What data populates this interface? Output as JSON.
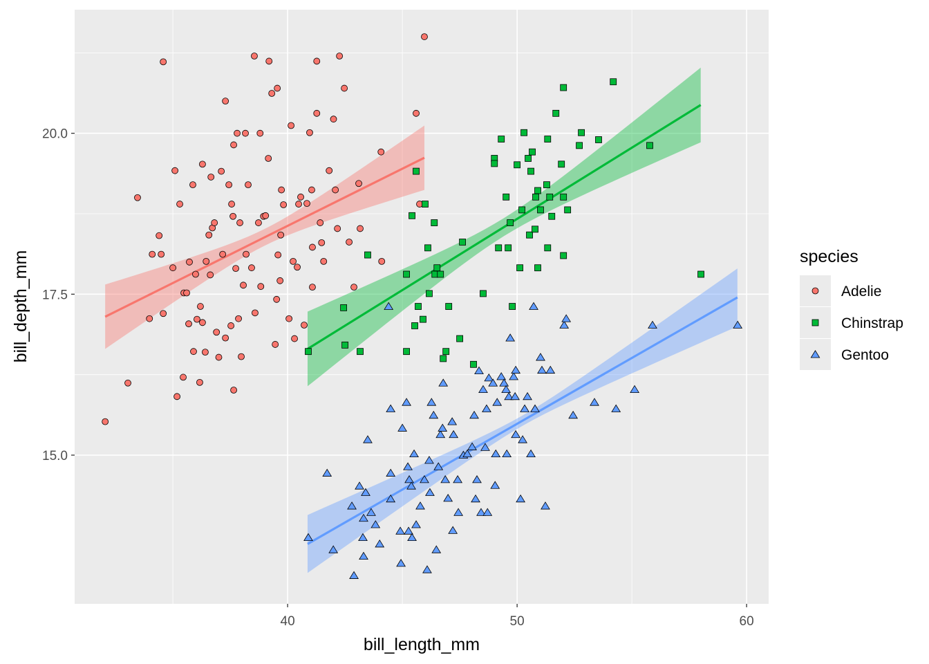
{
  "chart_data": {
    "type": "scatter",
    "title": "",
    "xlabel": "bill_length_mm",
    "ylabel": "bill_depth_mm",
    "xlim": [
      30.72,
      60.96
    ],
    "ylim": [
      12.69,
      21.92
    ],
    "x_ticks": [
      {
        "value": 40,
        "label": "40"
      },
      {
        "value": 50,
        "label": "50"
      },
      {
        "value": 60,
        "label": "60"
      }
    ],
    "y_ticks": [
      {
        "value": 15.0,
        "label": "15.0"
      },
      {
        "value": 17.5,
        "label": "17.5"
      },
      {
        "value": 20.0,
        "label": "20.0"
      }
    ],
    "x_minor": [
      35,
      45,
      55
    ],
    "y_minor": [
      16.25,
      18.75,
      21.25
    ],
    "grid": true,
    "legend": {
      "title": "species",
      "placement": "right"
    },
    "series": [
      {
        "name": "Adelie",
        "color": "#F8766D",
        "shape": "circle",
        "fit": {
          "x": [
            32.05,
            45.96
          ],
          "y": [
            17.15,
            19.62
          ],
          "ci_halfwidth": {
            "ends": 0.5,
            "center": 0.13
          }
        },
        "points": [
          [
            32.05,
            15.52
          ],
          [
            33.04,
            16.12
          ],
          [
            33.46,
            19.0
          ],
          [
            33.98,
            17.12
          ],
          [
            34.1,
            18.12
          ],
          [
            34.4,
            18.41
          ],
          [
            34.49,
            18.12
          ],
          [
            34.58,
            17.2
          ],
          [
            34.58,
            21.11
          ],
          [
            35.0,
            17.91
          ],
          [
            35.09,
            19.42
          ],
          [
            35.18,
            15.91
          ],
          [
            35.3,
            18.9
          ],
          [
            35.45,
            16.21
          ],
          [
            35.48,
            17.52
          ],
          [
            35.6,
            17.52
          ],
          [
            35.69,
            17.04
          ],
          [
            35.72,
            18.0
          ],
          [
            35.87,
            19.2
          ],
          [
            35.9,
            16.61
          ],
          [
            35.99,
            17.81
          ],
          [
            36.05,
            17.11
          ],
          [
            36.17,
            16.13
          ],
          [
            36.2,
            17.31
          ],
          [
            36.29,
            19.52
          ],
          [
            36.29,
            17.06
          ],
          [
            36.41,
            16.6
          ],
          [
            36.45,
            18.01
          ],
          [
            36.57,
            18.42
          ],
          [
            36.63,
            17.8
          ],
          [
            36.66,
            19.32
          ],
          [
            36.72,
            18.53
          ],
          [
            36.81,
            18.61
          ],
          [
            36.9,
            16.91
          ],
          [
            37.0,
            16.52
          ],
          [
            37.11,
            19.41
          ],
          [
            37.17,
            18.12
          ],
          [
            37.29,
            16.82
          ],
          [
            37.29,
            20.5
          ],
          [
            37.44,
            19.2
          ],
          [
            37.53,
            17.01
          ],
          [
            37.56,
            18.9
          ],
          [
            37.62,
            18.71
          ],
          [
            37.65,
            19.82
          ],
          [
            37.65,
            16.01
          ],
          [
            37.74,
            17.9
          ],
          [
            37.8,
            20.0
          ],
          [
            37.86,
            17.12
          ],
          [
            37.92,
            18.61
          ],
          [
            37.98,
            16.53
          ],
          [
            38.07,
            17.64
          ],
          [
            38.16,
            20.0
          ],
          [
            38.19,
            18.12
          ],
          [
            38.28,
            19.2
          ],
          [
            38.43,
            17.91
          ],
          [
            38.55,
            21.2
          ],
          [
            38.58,
            17.21
          ],
          [
            38.73,
            18.61
          ],
          [
            38.8,
            20.0
          ],
          [
            38.83,
            17.62
          ],
          [
            38.95,
            18.71
          ],
          [
            39.04,
            18.72
          ],
          [
            39.16,
            19.61
          ],
          [
            39.19,
            21.12
          ],
          [
            39.31,
            20.62
          ],
          [
            39.46,
            16.72
          ],
          [
            39.52,
            17.42
          ],
          [
            39.55,
            20.7
          ],
          [
            39.58,
            18.11
          ],
          [
            39.67,
            17.71
          ],
          [
            39.7,
            18.42
          ],
          [
            39.73,
            19.12
          ],
          [
            39.82,
            18.89
          ],
          [
            40.06,
            17.12
          ],
          [
            40.15,
            20.12
          ],
          [
            40.24,
            18.01
          ],
          [
            40.3,
            16.81
          ],
          [
            40.42,
            17.92
          ],
          [
            40.48,
            18.9
          ],
          [
            40.57,
            19.01
          ],
          [
            40.72,
            17.02
          ],
          [
            40.84,
            18.91
          ],
          [
            40.96,
            20.01
          ],
          [
            41.05,
            19.12
          ],
          [
            41.08,
            17.61
          ],
          [
            41.08,
            18.23
          ],
          [
            41.27,
            21.12
          ],
          [
            41.27,
            20.31
          ],
          [
            41.42,
            18.61
          ],
          [
            41.48,
            18.3
          ],
          [
            41.57,
            18.01
          ],
          [
            41.81,
            19.42
          ],
          [
            42.0,
            20.22
          ],
          [
            42.08,
            19.12
          ],
          [
            42.17,
            18.52
          ],
          [
            42.26,
            21.2
          ],
          [
            42.47,
            20.7
          ],
          [
            42.68,
            18.31
          ],
          [
            42.89,
            17.61
          ],
          [
            43.1,
            19.22
          ],
          [
            43.16,
            18.52
          ],
          [
            44.07,
            19.71
          ],
          [
            44.1,
            18.01
          ],
          [
            45.6,
            20.31
          ],
          [
            45.75,
            18.9
          ],
          [
            45.96,
            21.5
          ]
        ]
      },
      {
        "name": "Chinstrap",
        "color": "#00BA38",
        "shape": "square",
        "fit": {
          "x": [
            40.87,
            58.0
          ],
          "y": [
            16.65,
            20.44
          ],
          "ci_halfwidth": {
            "ends": 0.58,
            "center": 0.14
          }
        },
        "points": [
          [
            40.9,
            16.61
          ],
          [
            42.44,
            17.29
          ],
          [
            42.5,
            16.71
          ],
          [
            43.16,
            16.61
          ],
          [
            43.49,
            18.11
          ],
          [
            45.18,
            17.81
          ],
          [
            45.18,
            16.61
          ],
          [
            45.42,
            18.72
          ],
          [
            45.54,
            17.01
          ],
          [
            45.6,
            19.41
          ],
          [
            45.69,
            17.31
          ],
          [
            45.9,
            17.11
          ],
          [
            45.99,
            18.9
          ],
          [
            46.11,
            18.22
          ],
          [
            46.17,
            17.51
          ],
          [
            46.39,
            18.61
          ],
          [
            46.42,
            17.81
          ],
          [
            46.51,
            17.91
          ],
          [
            46.66,
            17.81
          ],
          [
            46.78,
            16.5
          ],
          [
            46.9,
            16.61
          ],
          [
            47.02,
            17.31
          ],
          [
            47.5,
            16.81
          ],
          [
            47.62,
            18.31
          ],
          [
            48.1,
            16.41
          ],
          [
            48.52,
            17.51
          ],
          [
            49.01,
            19.61
          ],
          [
            49.01,
            19.53
          ],
          [
            49.19,
            18.22
          ],
          [
            49.31,
            19.91
          ],
          [
            49.52,
            19.01
          ],
          [
            49.61,
            18.22
          ],
          [
            49.7,
            18.61
          ],
          [
            49.79,
            17.31
          ],
          [
            50.0,
            19.51
          ],
          [
            50.12,
            17.91
          ],
          [
            50.21,
            18.81
          ],
          [
            50.3,
            20.01
          ],
          [
            50.48,
            19.61
          ],
          [
            50.54,
            18.42
          ],
          [
            50.6,
            19.41
          ],
          [
            50.66,
            19.71
          ],
          [
            50.78,
            18.51
          ],
          [
            50.81,
            19.01
          ],
          [
            50.9,
            19.11
          ],
          [
            50.9,
            17.91
          ],
          [
            51.02,
            18.81
          ],
          [
            51.29,
            19.2
          ],
          [
            51.33,
            19.91
          ],
          [
            51.33,
            18.22
          ],
          [
            51.42,
            19.01
          ],
          [
            51.51,
            18.71
          ],
          [
            51.69,
            20.31
          ],
          [
            51.93,
            19.52
          ],
          [
            52.02,
            18.1
          ],
          [
            52.02,
            19.01
          ],
          [
            52.02,
            20.71
          ],
          [
            52.2,
            18.81
          ],
          [
            52.71,
            19.81
          ],
          [
            52.8,
            20.01
          ],
          [
            53.55,
            19.9
          ],
          [
            54.19,
            20.8
          ],
          [
            55.78,
            19.81
          ],
          [
            58.01,
            17.81
          ]
        ]
      },
      {
        "name": "Gentoo",
        "color": "#619CFF",
        "shape": "triangle",
        "fit": {
          "x": [
            40.87,
            59.6
          ],
          "y": [
            13.62,
            17.45
          ],
          "ci_halfwidth": {
            "ends": 0.45,
            "center": 0.08
          }
        },
        "points": [
          [
            40.9,
            13.72
          ],
          [
            41.72,
            14.72
          ],
          [
            41.99,
            13.53
          ],
          [
            42.8,
            14.21
          ],
          [
            42.89,
            13.13
          ],
          [
            43.13,
            14.52
          ],
          [
            43.28,
            13.72
          ],
          [
            43.31,
            14.02
          ],
          [
            43.31,
            13.43
          ],
          [
            43.4,
            14.42
          ],
          [
            43.49,
            15.24
          ],
          [
            43.64,
            14.11
          ],
          [
            43.83,
            13.92
          ],
          [
            44.01,
            13.62
          ],
          [
            44.4,
            17.31
          ],
          [
            44.49,
            14.72
          ],
          [
            44.49,
            14.32
          ],
          [
            44.49,
            15.72
          ],
          [
            44.91,
            13.82
          ],
          [
            44.94,
            13.32
          ],
          [
            45.0,
            15.42
          ],
          [
            45.18,
            15.82
          ],
          [
            45.24,
            14.82
          ],
          [
            45.27,
            13.82
          ],
          [
            45.3,
            14.62
          ],
          [
            45.39,
            14.52
          ],
          [
            45.42,
            13.72
          ],
          [
            45.51,
            15.02
          ],
          [
            45.6,
            13.92
          ],
          [
            45.78,
            14.21
          ],
          [
            45.96,
            14.62
          ],
          [
            46.08,
            13.22
          ],
          [
            46.17,
            14.92
          ],
          [
            46.2,
            14.42
          ],
          [
            46.27,
            15.82
          ],
          [
            46.36,
            15.62
          ],
          [
            46.48,
            13.53
          ],
          [
            46.57,
            14.82
          ],
          [
            46.66,
            15.32
          ],
          [
            46.75,
            15.42
          ],
          [
            46.78,
            16.12
          ],
          [
            46.87,
            14.62
          ],
          [
            46.99,
            14.33
          ],
          [
            47.17,
            15.52
          ],
          [
            47.2,
            13.83
          ],
          [
            47.23,
            15.32
          ],
          [
            47.41,
            14.62
          ],
          [
            47.44,
            14.11
          ],
          [
            47.66,
            15.0
          ],
          [
            47.83,
            15.02
          ],
          [
            48.04,
            15.13
          ],
          [
            48.13,
            15.62
          ],
          [
            48.19,
            14.32
          ],
          [
            48.25,
            14.62
          ],
          [
            48.34,
            16.31
          ],
          [
            48.43,
            14.11
          ],
          [
            48.52,
            16.02
          ],
          [
            48.61,
            15.12
          ],
          [
            48.67,
            15.72
          ],
          [
            48.71,
            14.11
          ],
          [
            48.77,
            16.2
          ],
          [
            48.95,
            16.12
          ],
          [
            49.04,
            14.53
          ],
          [
            49.07,
            15.02
          ],
          [
            49.13,
            15.82
          ],
          [
            49.31,
            16.22
          ],
          [
            49.43,
            16.12
          ],
          [
            49.52,
            16.02
          ],
          [
            49.55,
            15.02
          ],
          [
            49.64,
            15.91
          ],
          [
            49.7,
            16.82
          ],
          [
            49.85,
            16.22
          ],
          [
            49.91,
            15.91
          ],
          [
            49.94,
            15.32
          ],
          [
            49.94,
            16.32
          ],
          [
            50.15,
            14.32
          ],
          [
            50.24,
            15.24
          ],
          [
            50.33,
            15.72
          ],
          [
            50.45,
            15.91
          ],
          [
            50.6,
            15.02
          ],
          [
            50.72,
            17.31
          ],
          [
            50.78,
            15.72
          ],
          [
            51.02,
            16.52
          ],
          [
            51.08,
            16.32
          ],
          [
            51.23,
            14.21
          ],
          [
            51.45,
            16.32
          ],
          [
            52.05,
            17.02
          ],
          [
            52.14,
            17.12
          ],
          [
            52.44,
            15.62
          ],
          [
            53.37,
            15.82
          ],
          [
            54.31,
            15.72
          ],
          [
            55.12,
            16.02
          ],
          [
            55.9,
            17.02
          ],
          [
            59.61,
            17.02
          ]
        ]
      }
    ]
  }
}
